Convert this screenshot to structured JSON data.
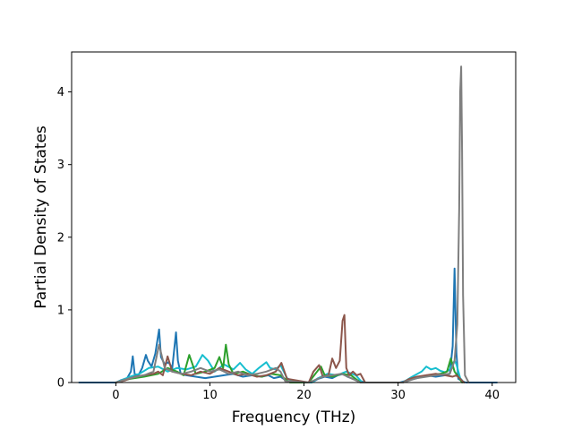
{
  "chart_data": {
    "type": "line",
    "title": "",
    "xlabel": "Frequency (THz)",
    "ylabel": "Partial Density of States",
    "xlim": [
      -4.7,
      42.5
    ],
    "ylim": [
      0,
      4.55
    ],
    "xticks": [
      0,
      10,
      20,
      30,
      40
    ],
    "xtick_labels": [
      "0",
      "10",
      "20",
      "30",
      "40"
    ],
    "yticks": [
      0,
      1,
      2,
      3,
      4
    ],
    "ytick_labels": [
      "0",
      "1",
      "2",
      "3",
      "4"
    ],
    "grid": false,
    "legend": "none",
    "series": [
      {
        "color": "#1f77b4",
        "x": [
          -3.9,
          0,
          0.5,
          1.2,
          1.6,
          1.8,
          2.0,
          2.4,
          2.8,
          3.2,
          3.4,
          3.8,
          4.2,
          4.6,
          4.8,
          5.2,
          5.6,
          6.0,
          6.4,
          6.6,
          6.9,
          7.5,
          8.5,
          9.5,
          10.5,
          11.5,
          12.5,
          13.5,
          14.5,
          15.5,
          16.2,
          16.8,
          17.5,
          18.2,
          18.8,
          19.5,
          20.8,
          21.5,
          22.2,
          23.0,
          23.6,
          24.2,
          24.6,
          25.2,
          26.0,
          26.5,
          30.2,
          31.0,
          32.0,
          33.0,
          34.0,
          35.0,
          35.5,
          35.8,
          36.0,
          36.2,
          36.4,
          36.8,
          37.2,
          40.5
        ],
        "y": [
          0,
          0,
          0.03,
          0.06,
          0.15,
          0.36,
          0.12,
          0.1,
          0.2,
          0.38,
          0.3,
          0.22,
          0.4,
          0.73,
          0.35,
          0.25,
          0.28,
          0.2,
          0.69,
          0.3,
          0.12,
          0.1,
          0.08,
          0.06,
          0.08,
          0.1,
          0.12,
          0.08,
          0.1,
          0.08,
          0.1,
          0.06,
          0.08,
          0.02,
          0,
          0,
          0,
          0.05,
          0.08,
          0.06,
          0.1,
          0.12,
          0.08,
          0.05,
          0.02,
          0,
          0,
          0.03,
          0.06,
          0.1,
          0.08,
          0.1,
          0.12,
          0.5,
          1.57,
          0.4,
          0.05,
          0.02,
          0,
          0
        ]
      },
      {
        "color": "#17becf",
        "x": [
          0,
          1.5,
          2.5,
          3.5,
          4.5,
          5.5,
          6.5,
          7.5,
          8.5,
          9.2,
          9.8,
          10.5,
          11.5,
          12.5,
          13.2,
          13.8,
          14.5,
          15.2,
          16.0,
          16.4,
          17.0,
          17.5,
          18.2,
          19.0,
          20.8,
          21.5,
          22.5,
          23.5,
          24.5,
          25.5,
          26.2,
          30.5,
          31.5,
          32.5,
          33.0,
          33.5,
          34.0,
          34.5,
          35.0,
          35.5,
          36.0,
          36.2,
          36.6,
          37.0
        ],
        "y": [
          0,
          0.08,
          0.12,
          0.2,
          0.22,
          0.15,
          0.2,
          0.18,
          0.22,
          0.38,
          0.3,
          0.15,
          0.25,
          0.18,
          0.27,
          0.18,
          0.12,
          0.2,
          0.28,
          0.2,
          0.18,
          0.24,
          0.06,
          0,
          0,
          0.06,
          0.12,
          0.1,
          0.15,
          0.1,
          0,
          0,
          0.08,
          0.15,
          0.22,
          0.18,
          0.2,
          0.16,
          0.14,
          0.18,
          0.3,
          0.25,
          0.06,
          0
        ]
      },
      {
        "color": "#2ca02c",
        "x": [
          0,
          1.5,
          3.0,
          4.5,
          5.5,
          6.5,
          7.2,
          7.8,
          8.5,
          9.5,
          10.5,
          11.0,
          11.4,
          11.7,
          12.0,
          12.5,
          13.5,
          14.5,
          15.5,
          16.5,
          17.5,
          18.5,
          20.5,
          21.2,
          21.8,
          22.2,
          23.0,
          24.0,
          25.0,
          26.0,
          30.5,
          31.5,
          32.5,
          33.5,
          34.5,
          35.2,
          35.6,
          36.0,
          36.4,
          36.8
        ],
        "y": [
          0,
          0.05,
          0.08,
          0.12,
          0.2,
          0.15,
          0.1,
          0.38,
          0.12,
          0.15,
          0.2,
          0.35,
          0.2,
          0.52,
          0.25,
          0.12,
          0.15,
          0.1,
          0.08,
          0.12,
          0.1,
          0,
          0,
          0.12,
          0.22,
          0.1,
          0.08,
          0.12,
          0.1,
          0,
          0,
          0.05,
          0.08,
          0.1,
          0.12,
          0.15,
          0.33,
          0.15,
          0.08,
          0
        ]
      },
      {
        "color": "#8c564b",
        "x": [
          0,
          1.0,
          2.0,
          3.0,
          4.0,
          4.5,
          5.0,
          5.5,
          6.0,
          7.0,
          8.0,
          9.0,
          10.0,
          11.0,
          12.0,
          13.0,
          14.0,
          15.0,
          16.0,
          17.0,
          17.6,
          18.2,
          20.5,
          21.0,
          21.6,
          22.0,
          22.6,
          23.0,
          23.4,
          23.8,
          24.1,
          24.3,
          24.5,
          24.8,
          25.2,
          25.6,
          26.0,
          26.5,
          30.5,
          31.2,
          32.0,
          33.0,
          34.0,
          35.0,
          35.8,
          36.2,
          36.6,
          37.0
        ],
        "y": [
          0,
          0.03,
          0.08,
          0.1,
          0.12,
          0.15,
          0.1,
          0.36,
          0.15,
          0.12,
          0.1,
          0.15,
          0.12,
          0.2,
          0.15,
          0.1,
          0.12,
          0.08,
          0.1,
          0.15,
          0.27,
          0.05,
          0,
          0.15,
          0.24,
          0.08,
          0.1,
          0.33,
          0.2,
          0.3,
          0.85,
          0.93,
          0.2,
          0.1,
          0.15,
          0.1,
          0.12,
          0,
          0,
          0.05,
          0.08,
          0.1,
          0.12,
          0.1,
          0.08,
          0.1,
          0.05,
          0
        ]
      },
      {
        "color": "#7f7f7f",
        "x": [
          0,
          1.5,
          3.0,
          4.0,
          4.6,
          5.2,
          6.0,
          7.0,
          8.0,
          9.0,
          10.0,
          11.0,
          12.0,
          13.0,
          14.0,
          15.0,
          16.0,
          17.0,
          17.5,
          18.0,
          20.5,
          22.0,
          24.0,
          26.0,
          30.5,
          32.0,
          34.0,
          35.5,
          36.0,
          36.3,
          36.5,
          36.6,
          36.7,
          36.8,
          36.9,
          37.1,
          37.5
        ],
        "y": [
          0,
          0.06,
          0.1,
          0.15,
          0.52,
          0.2,
          0.15,
          0.12,
          0.15,
          0.2,
          0.15,
          0.18,
          0.12,
          0.15,
          0.1,
          0.12,
          0.15,
          0.2,
          0.15,
          0.02,
          0,
          0.08,
          0.12,
          0,
          0,
          0.06,
          0.1,
          0.12,
          0.3,
          0.8,
          2.4,
          4.0,
          4.35,
          3.2,
          1.2,
          0.1,
          0
        ]
      }
    ]
  }
}
